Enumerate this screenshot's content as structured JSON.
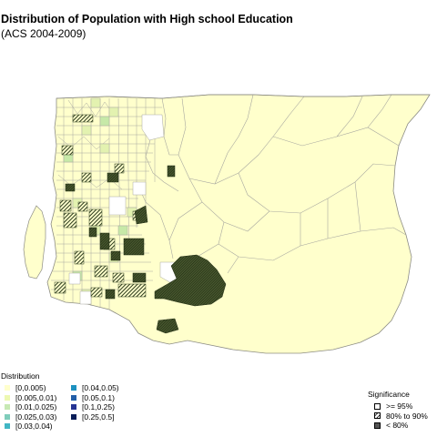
{
  "map": {
    "title": "Distribution of Population with High school Education",
    "subtitle": "(ACS 2004-2009)",
    "colors": {
      "base_fill": "#ffffcc",
      "tract_border": "#a8a8a0",
      "hatch_fill": "#2b3a1c",
      "light_green": "#e3f2b0",
      "green": "#c7e9a8"
    }
  },
  "distribution_legend": {
    "title": "Distribution",
    "left_column": [
      {
        "label": "[0,0.005)",
        "color": "#ffffcc"
      },
      {
        "label": "[0.005,0.01)",
        "color": "#edf8b1"
      },
      {
        "label": "[0.01,0.025)",
        "color": "#c7e9b4"
      },
      {
        "label": "[0.025,0.03)",
        "color": "#7fcdbb"
      },
      {
        "label": "[0.03,0.04)",
        "color": "#41b6c4"
      }
    ],
    "right_column": [
      {
        "label": "[0.04,0.05)",
        "color": "#1d91c0"
      },
      {
        "label": "[0.05,0.1)",
        "color": "#225ea8"
      },
      {
        "label": "[0.1,0.25)",
        "color": "#253494"
      },
      {
        "label": "[0.25,0.5]",
        "color": "#081d58"
      }
    ]
  },
  "significance_legend": {
    "title": "Significance",
    "items": [
      {
        "label": ">= 95%",
        "pattern": "open"
      },
      {
        "label": "80% to 90%",
        "pattern": "hatched"
      },
      {
        "label": "< 80%",
        "pattern": "dark"
      }
    ]
  }
}
